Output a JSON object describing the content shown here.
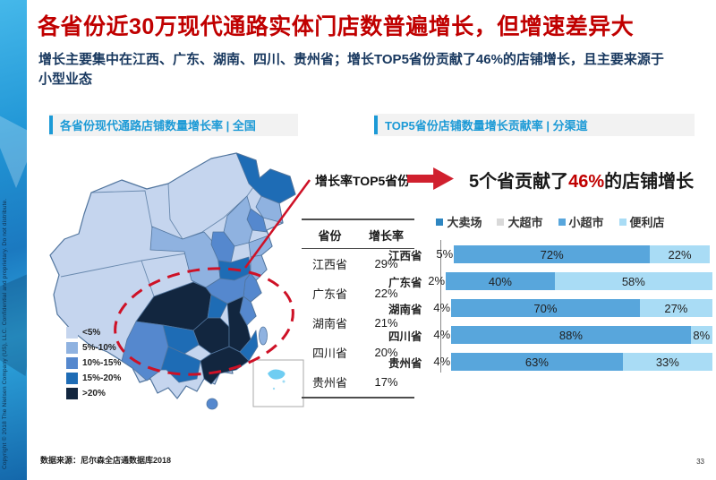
{
  "slide": {
    "title": "各省份近30万现代通路实体门店数普遍增长，但增速差异大",
    "subtitle": "增长主要集中在江西、广东、湖南、四川、贵州省；增长TOP5省份贡献了46%的店铺增长，且主要来源于小型业态",
    "footer_source": "数据来源：尼尔森全店通数据库2018",
    "page_number": "33",
    "copyright_vertical": "Copyright © 2018 The Nielsen Company (US), LLC. Confidential and proprietary. Do not distribute.",
    "title_color": "#c00000",
    "accent_blue": "#1c9ad6"
  },
  "left_panel": {
    "header": "各省份现代通路店铺数量增长率 | 全国",
    "map_legend": [
      {
        "label": "<5%",
        "color": "#c5d5ee"
      },
      {
        "label": "5%-10%",
        "color": "#8fb2e0"
      },
      {
        "label": "10%-15%",
        "color": "#5588ce"
      },
      {
        "label": "15%-20%",
        "color": "#1e6cb5"
      },
      {
        "label": ">20%",
        "color": "#12263f"
      }
    ],
    "annotation_color": "#ce1126"
  },
  "top5_table": {
    "title": "增长率TOP5省份",
    "columns": [
      "省份",
      "增长率"
    ],
    "rows": [
      [
        "江西省",
        "29%"
      ],
      [
        "广东省",
        "22%"
      ],
      [
        "湖南省",
        "21%"
      ],
      [
        "四川省",
        "20%"
      ],
      [
        "贵州省",
        "17%"
      ]
    ]
  },
  "right_panel": {
    "header": "TOP5省份店铺数量增长贡献率 | 分渠道",
    "highlight": {
      "prefix": "5个省贡献了",
      "value": "46%",
      "suffix": "的店铺增长"
    }
  },
  "chart_data": {
    "type": "bar",
    "orientation": "horizontal",
    "stacked": true,
    "unit": "%",
    "xlim": [
      0,
      100
    ],
    "categories": [
      "江西省",
      "广东省",
      "湖南省",
      "四川省",
      "贵州省"
    ],
    "series": [
      {
        "name": "大卖场+大超市",
        "values": [
          5,
          2,
          4,
          4,
          4
        ],
        "color": "#ffffff"
      },
      {
        "name": "小超市",
        "values": [
          72,
          40,
          70,
          88,
          63
        ],
        "color": "#58a6dc"
      },
      {
        "name": "便利店",
        "values": [
          22,
          58,
          27,
          8,
          33
        ],
        "color": "#a9dcf5"
      }
    ],
    "legend": [
      {
        "label": "大卖场",
        "color": "#2e86c1"
      },
      {
        "label": "大超市",
        "color": "#d9d9d9"
      },
      {
        "label": "小超市",
        "color": "#58a6dc"
      },
      {
        "label": "便利店",
        "color": "#a9dcf5"
      }
    ],
    "legend_position": "top"
  }
}
